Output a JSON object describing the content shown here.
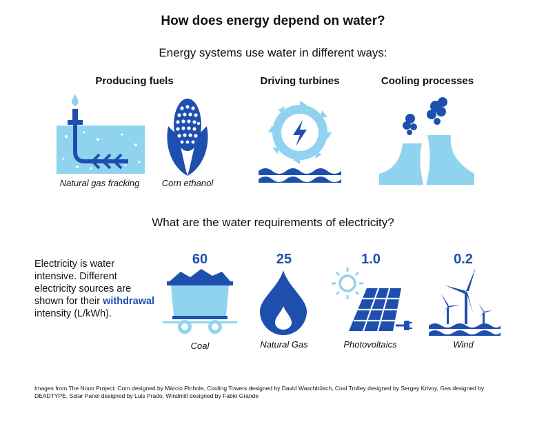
{
  "title": "How does energy depend on water?",
  "subtitle": "Energy systems use water in different ways:",
  "categories": [
    {
      "label": "Producing fuels"
    },
    {
      "label": "Driving turbines"
    },
    {
      "label": "Cooling processes"
    }
  ],
  "fuel_items": [
    {
      "caption": "Natural gas fracking",
      "icon": "fracking-icon"
    },
    {
      "caption": "Corn ethanol",
      "icon": "corn-icon"
    }
  ],
  "question": "What are the water requirements of electricity?",
  "description": {
    "before": "Electricity is water intensive. Different electricity sources are shown for their ",
    "highlight": "withdrawal",
    "after": " intensity (L/kWh)."
  },
  "sources": [
    {
      "name": "Coal",
      "value": "60",
      "icon": "coal-trolley-icon"
    },
    {
      "name": "Natural Gas",
      "value": "25",
      "icon": "gas-flame-icon"
    },
    {
      "name": "Photovoltaics",
      "value": "1.0",
      "icon": "solar-panel-icon"
    },
    {
      "name": "Wind",
      "value": "0.2",
      "icon": "windmill-icon"
    }
  ],
  "credits": "Images from The Noun Project: Corn designed by Márcio Pinhole, Cooling Towers designed by David Waschbüsch, Coal Trolley designed by Sergey Krivoy, Gas designed by DEADTYPE, Solar Panel designed by Luis Prado, Windmill designed by Fabio Grande",
  "colors": {
    "dark_blue": "#1f4fae",
    "light_blue": "#8fd3ee",
    "text": "#111111"
  }
}
